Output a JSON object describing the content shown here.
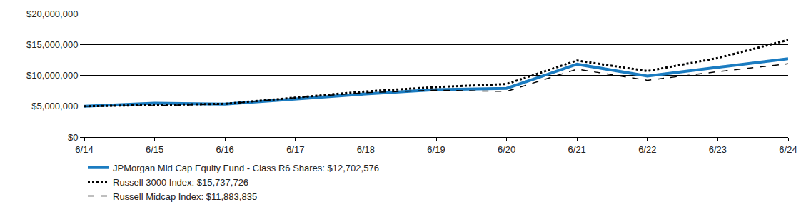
{
  "chart_data": {
    "type": "line",
    "categories": [
      "6/14",
      "6/15",
      "6/16",
      "6/17",
      "6/18",
      "6/19",
      "6/20",
      "6/21",
      "6/22",
      "6/23",
      "6/24"
    ],
    "series": [
      {
        "name": "JPMorgan Mid Cap Equity Fund - Class R6 Shares: $12,702,576",
        "color": "#1b7cc1",
        "line_style": "solid",
        "values": [
          5000000,
          5500000,
          5350000,
          6200000,
          7000000,
          7700000,
          7900000,
          11800000,
          9900000,
          11300000,
          12702576
        ]
      },
      {
        "name": "Russell 3000 Index: $15,737,726",
        "color": "#000000",
        "line_style": "dotted",
        "values": [
          5000000,
          5200000,
          5400000,
          6400000,
          7400000,
          8100000,
          8600000,
          12400000,
          10700000,
          12800000,
          15737726
        ]
      },
      {
        "name": "Russell Midcap Index: $11,883,835",
        "color": "#000000",
        "line_style": "dashed",
        "values": [
          5000000,
          5100000,
          5350000,
          6400000,
          7200000,
          7600000,
          7400000,
          11000000,
          9200000,
          10600000,
          11883835
        ]
      }
    ],
    "ylim": [
      0,
      20000000
    ],
    "yticks": [
      {
        "value": 0,
        "label": "$0"
      },
      {
        "value": 5000000,
        "label": "$5,000,000"
      },
      {
        "value": 10000000,
        "label": "$10,000,000"
      },
      {
        "value": 15000000,
        "label": "$15,000,000"
      },
      {
        "value": 20000000,
        "label": "$20,000,000"
      }
    ],
    "grid": true,
    "legend": "bottom"
  }
}
